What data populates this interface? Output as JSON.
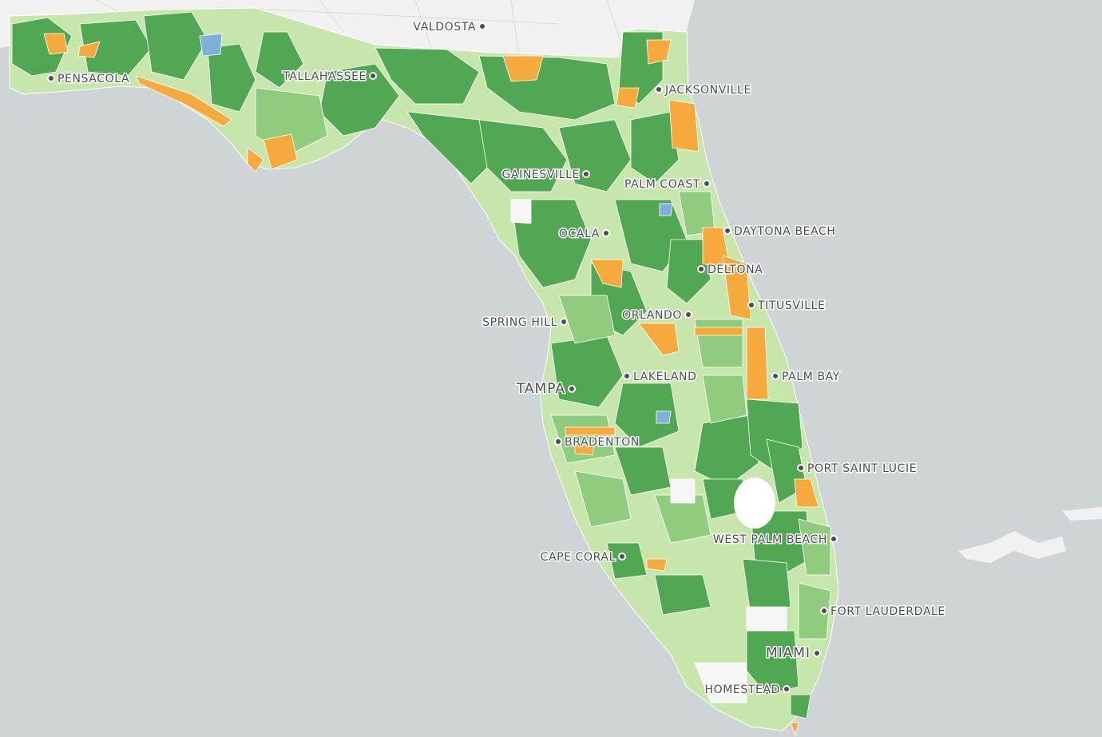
{
  "cities": [
    {
      "name": "VALDOSTA",
      "major": false
    },
    {
      "name": "PENSACOLA",
      "major": false
    },
    {
      "name": "TALLAHASSEE",
      "major": false
    },
    {
      "name": "JACKSONVILLE",
      "major": false
    },
    {
      "name": "GAINESVILLE",
      "major": false
    },
    {
      "name": "PALM COAST",
      "major": false
    },
    {
      "name": "DAYTONA BEACH",
      "major": false
    },
    {
      "name": "OCALA",
      "major": false
    },
    {
      "name": "DELTONA",
      "major": false
    },
    {
      "name": "TITUSVILLE",
      "major": false
    },
    {
      "name": "SPRING HILL",
      "major": false
    },
    {
      "name": "ORLANDO",
      "major": false
    },
    {
      "name": "LAKELAND",
      "major": false
    },
    {
      "name": "TAMPA",
      "major": true
    },
    {
      "name": "PALM BAY",
      "major": false
    },
    {
      "name": "BRADENTON",
      "major": false
    },
    {
      "name": "PORT SAINT LUCIE",
      "major": false
    },
    {
      "name": "WEST PALM BEACH",
      "major": false
    },
    {
      "name": "CAPE CORAL",
      "major": false
    },
    {
      "name": "FORT LAUDERDALE",
      "major": false
    },
    {
      "name": "MIAMI",
      "major": true
    },
    {
      "name": "HOMESTEAD",
      "major": false
    }
  ],
  "colors": {
    "water": "#cfd4d6",
    "land_outside": "#f1f1f1",
    "dark_green": "#52a852",
    "mid_green": "#8fcc7e",
    "light_green": "#c7e6ac",
    "orange": "#f6a93c",
    "blue": "#7fb0d8",
    "no_data": "#f6f6f6"
  }
}
